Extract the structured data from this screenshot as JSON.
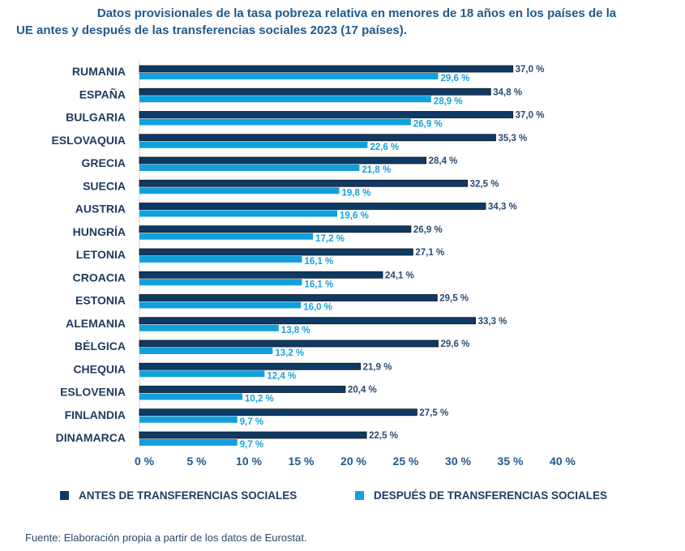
{
  "chart_data": {
    "type": "bar",
    "orientation": "horizontal",
    "title": "Datos provisionales de la tasa pobreza relativa en menores de 18 años en los países de la UE antes y después de las transferencias sociales 2023 (17 países).",
    "title_lines": [
      "Datos provisionales de la tasa pobreza relativa en menores de 18 años en los países de la",
      "UE antes y después de las transferencias sociales 2023 (17 países)."
    ],
    "categories": [
      "RUMANIA",
      "ESPAÑA",
      "BULGARIA",
      "ESLOVAQUIA",
      "GRECIA",
      "SUECIA",
      "AUSTRIA",
      "HUNGRÍA",
      "LETONIA",
      "CROACIA",
      "ESTONIA",
      "ALEMANIA",
      "BÉLGICA",
      "CHEQUIA",
      "ESLOVENIA",
      "FINLANDIA",
      "DINAMARCA"
    ],
    "series": [
      {
        "name": "ANTES DE TRANSFERENCIAS SOCIALES",
        "color": "#0d3a66",
        "values": [
          37.0,
          34.8,
          37.0,
          35.3,
          28.4,
          32.5,
          34.3,
          26.9,
          27.1,
          24.1,
          29.5,
          33.3,
          29.6,
          21.9,
          20.4,
          27.5,
          22.5
        ]
      },
      {
        "name": "DESPUÉS DE TRANSFERENCIAS SOCIALES",
        "color": "#12a0dc",
        "values": [
          29.6,
          28.9,
          26.9,
          22.6,
          21.8,
          19.8,
          19.6,
          17.2,
          16.1,
          16.1,
          16.0,
          13.8,
          13.2,
          12.4,
          10.2,
          9.7,
          9.7
        ]
      }
    ],
    "xlim": [
      0,
      40
    ],
    "xticks": [
      0,
      5,
      10,
      15,
      20,
      25,
      30,
      35,
      40
    ],
    "tick_suffix": " %",
    "grid": false,
    "legend_position": "bottom"
  },
  "source": "Fuente: Elaboración propia a partir de los datos de Eurostat."
}
